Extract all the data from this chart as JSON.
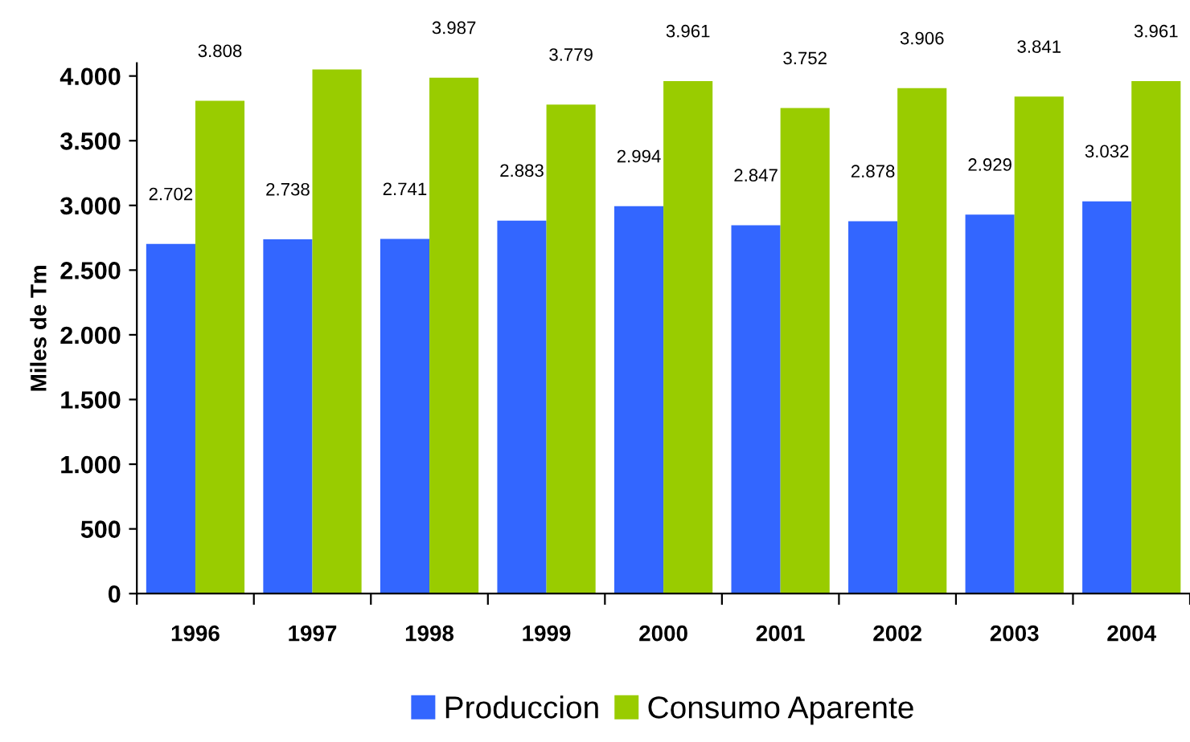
{
  "chart_data": {
    "type": "bar",
    "ylabel": "Miles de Tm",
    "categories": [
      "1996",
      "1997",
      "1998",
      "1999",
      "2000",
      "2001",
      "2002",
      "2003",
      "2004"
    ],
    "series": [
      {
        "name": "Produccion",
        "color": "#3366ff",
        "values": [
          2702,
          2738,
          2741,
          2883,
          2994,
          2847,
          2878,
          2929,
          3032
        ],
        "value_labels": [
          "2.702",
          "2.738",
          "2.741",
          "2.883",
          "2.994",
          "2.847",
          "2.878",
          "2.929",
          "3.032"
        ]
      },
      {
        "name": "Consumo Aparente",
        "color": "#99cc00",
        "values": [
          3808,
          4050,
          3987,
          3779,
          3961,
          3752,
          3906,
          3841,
          3961
        ],
        "value_labels": [
          "3.808",
          null,
          "3.987",
          "3.779",
          "3.961",
          "3.752",
          "3.906",
          "3.841",
          "3.961"
        ]
      }
    ],
    "ylim": [
      0,
      4100
    ],
    "yticks": [
      {
        "value": 0,
        "label": "0"
      },
      {
        "value": 500,
        "label": "500"
      },
      {
        "value": 1000,
        "label": "1.000"
      },
      {
        "value": 1500,
        "label": "1.500"
      },
      {
        "value": 2000,
        "label": "2.000"
      },
      {
        "value": 2500,
        "label": "2.500"
      },
      {
        "value": 3000,
        "label": "3.000"
      },
      {
        "value": 3500,
        "label": "3.500"
      },
      {
        "value": 4000,
        "label": "4.000"
      }
    ],
    "grid": false,
    "legend": "bottom"
  }
}
